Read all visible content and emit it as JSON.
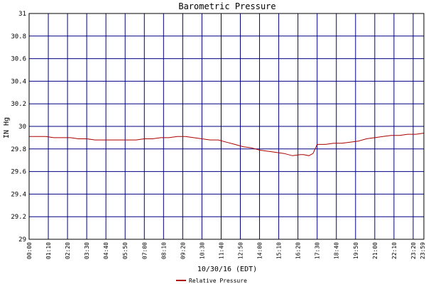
{
  "chart_data": {
    "type": "line",
    "title": "Barometric Pressure",
    "xlabel": "10/30/16 (EDT)",
    "ylabel": "IN Hg",
    "ylim": [
      29,
      31
    ],
    "yticks": [
      "29",
      "29.2",
      "29.4",
      "29.6",
      "29.8",
      "30",
      "30.2",
      "30.4",
      "30.6",
      "30.8",
      "31"
    ],
    "x_tick_labels": [
      "00:00",
      "01:10",
      "02:20",
      "03:30",
      "04:40",
      "05:50",
      "07:00",
      "08:10",
      "09:20",
      "10:30",
      "11:40",
      "12:50",
      "14:00",
      "15:10",
      "16:20",
      "17:30",
      "18:40",
      "19:50",
      "21:00",
      "22:10",
      "23:20",
      "23:59"
    ],
    "grid": true,
    "legend_position": "bottom",
    "series": [
      {
        "name": "Relative Pressure",
        "color": "#aa0000",
        "x_minutes": [
          0,
          30,
          60,
          90,
          120,
          150,
          180,
          210,
          240,
          270,
          300,
          330,
          360,
          390,
          420,
          450,
          480,
          510,
          540,
          570,
          600,
          630,
          660,
          690,
          720,
          750,
          780,
          810,
          840,
          870,
          900,
          930,
          960,
          990,
          1000,
          1020,
          1035,
          1050,
          1060,
          1070,
          1080,
          1110,
          1140,
          1170,
          1200,
          1230,
          1260,
          1290,
          1320,
          1350,
          1380,
          1410,
          1439
        ],
        "values": [
          29.91,
          29.91,
          29.91,
          29.9,
          29.9,
          29.9,
          29.89,
          29.89,
          29.88,
          29.88,
          29.88,
          29.88,
          29.88,
          29.88,
          29.89,
          29.89,
          29.9,
          29.9,
          29.91,
          29.91,
          29.9,
          29.89,
          29.88,
          29.88,
          29.86,
          29.84,
          29.82,
          29.81,
          29.79,
          29.78,
          29.77,
          29.76,
          29.74,
          29.75,
          29.75,
          29.74,
          29.76,
          29.84,
          29.84,
          29.84,
          29.84,
          29.85,
          29.85,
          29.86,
          29.87,
          29.89,
          29.9,
          29.91,
          29.92,
          29.92,
          29.93,
          29.93,
          29.94
        ]
      }
    ]
  }
}
